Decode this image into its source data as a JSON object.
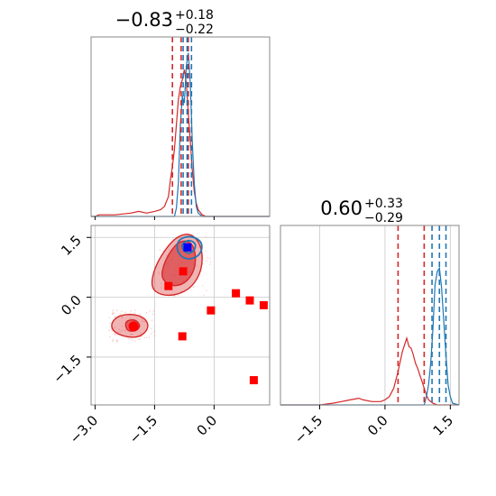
{
  "chart_data": {
    "type": "corner",
    "colors": {
      "red": "#d62728",
      "blue": "#1f77b4",
      "grid": "#c8c8c8",
      "axis": "#888888"
    },
    "panels": [
      {
        "id": "top_left",
        "type": "histogram",
        "title": {
          "value": "−0.83",
          "sup": "+0.18",
          "sub": "−0.22"
        },
        "xlim": [
          -3.1,
          1.4
        ],
        "ylim": [
          0,
          1
        ],
        "red_curve": [
          [
            -3.1,
            0.0
          ],
          [
            -3.0,
            0.0
          ],
          [
            -2.9,
            0.01
          ],
          [
            -2.5,
            0.01
          ],
          [
            -2.1,
            0.02
          ],
          [
            -1.9,
            0.03
          ],
          [
            -1.7,
            0.02
          ],
          [
            -1.5,
            0.03
          ],
          [
            -1.35,
            0.04
          ],
          [
            -1.25,
            0.06
          ],
          [
            -1.15,
            0.12
          ],
          [
            -1.1,
            0.22
          ],
          [
            -1.05,
            0.3
          ],
          [
            -1.0,
            0.4
          ],
          [
            -0.95,
            0.55
          ],
          [
            -0.9,
            0.7
          ],
          [
            -0.85,
            0.78
          ],
          [
            -0.8,
            0.82
          ],
          [
            -0.75,
            0.88
          ],
          [
            -0.7,
            0.8
          ],
          [
            -0.65,
            0.62
          ],
          [
            -0.6,
            0.45
          ],
          [
            -0.55,
            0.28
          ],
          [
            -0.5,
            0.15
          ],
          [
            -0.45,
            0.08
          ],
          [
            -0.4,
            0.04
          ],
          [
            -0.3,
            0.01
          ],
          [
            -0.2,
            0.0
          ],
          [
            1.4,
            0.0
          ]
        ],
        "blue_curve": [
          [
            -3.1,
            0.0
          ],
          [
            -1.0,
            0.0
          ],
          [
            -0.95,
            0.05
          ],
          [
            -0.9,
            0.2
          ],
          [
            -0.85,
            0.55
          ],
          [
            -0.8,
            0.72
          ],
          [
            -0.75,
            0.68
          ],
          [
            -0.7,
            0.9
          ],
          [
            -0.65,
            0.98
          ],
          [
            -0.6,
            0.8
          ],
          [
            -0.55,
            0.45
          ],
          [
            -0.5,
            0.2
          ],
          [
            -0.45,
            0.06
          ],
          [
            -0.4,
            0.02
          ],
          [
            -0.3,
            0.0
          ],
          [
            1.4,
            0.0
          ]
        ],
        "red_quantiles": [
          -1.05,
          -0.83,
          -0.65
        ],
        "blue_quantiles": [
          -0.78,
          -0.68,
          -0.57
        ]
      },
      {
        "id": "bottom_right",
        "type": "histogram",
        "title": {
          "value": "0.60",
          "sup": "+0.33",
          "sub": "−0.29"
        },
        "xlim": [
          -2.4,
          1.7
        ],
        "ylim": [
          0,
          1
        ],
        "xticks": [
          -1.5,
          0.0,
          1.5
        ],
        "xtick_labels": [
          "−1.5",
          "0.0",
          "1.5"
        ],
        "red_curve": [
          [
            -2.4,
            0.0
          ],
          [
            -1.5,
            0.0
          ],
          [
            -1.2,
            0.01
          ],
          [
            -1.0,
            0.02
          ],
          [
            -0.8,
            0.03
          ],
          [
            -0.6,
            0.04
          ],
          [
            -0.5,
            0.03
          ],
          [
            -0.3,
            0.02
          ],
          [
            -0.1,
            0.02
          ],
          [
            0.0,
            0.03
          ],
          [
            0.1,
            0.05
          ],
          [
            0.2,
            0.1
          ],
          [
            0.3,
            0.2
          ],
          [
            0.4,
            0.32
          ],
          [
            0.5,
            0.4
          ],
          [
            0.55,
            0.35
          ],
          [
            0.6,
            0.34
          ],
          [
            0.65,
            0.3
          ],
          [
            0.7,
            0.25
          ],
          [
            0.75,
            0.22
          ],
          [
            0.8,
            0.18
          ],
          [
            0.85,
            0.14
          ],
          [
            0.9,
            0.1
          ],
          [
            0.95,
            0.06
          ],
          [
            1.0,
            0.03
          ],
          [
            1.1,
            0.01
          ],
          [
            1.2,
            0.0
          ],
          [
            1.7,
            0.0
          ]
        ],
        "blue_curve": [
          [
            -2.4,
            0.0
          ],
          [
            0.9,
            0.0
          ],
          [
            0.95,
            0.05
          ],
          [
            1.0,
            0.12
          ],
          [
            1.05,
            0.25
          ],
          [
            1.1,
            0.45
          ],
          [
            1.15,
            0.72
          ],
          [
            1.2,
            0.8
          ],
          [
            1.25,
            0.82
          ],
          [
            1.3,
            0.7
          ],
          [
            1.35,
            0.5
          ],
          [
            1.4,
            0.3
          ],
          [
            1.45,
            0.12
          ],
          [
            1.5,
            0.05
          ],
          [
            1.55,
            0.01
          ],
          [
            1.7,
            0.0
          ]
        ],
        "red_quantiles": [
          0.3,
          0.9
        ],
        "blue_quantiles": [
          1.08,
          1.25,
          1.4
        ]
      },
      {
        "id": "bottom_left",
        "type": "scatter_contour",
        "xlim": [
          -3.1,
          1.4
        ],
        "ylim": [
          -2.7,
          1.8
        ],
        "xticks": [
          -3.0,
          -1.5,
          0.0
        ],
        "xtick_labels": [
          "−3.0",
          "−1.5",
          "0.0"
        ],
        "yticks": [
          1.5,
          0.0,
          -1.5
        ],
        "ytick_labels": [
          "1.5",
          "0.0",
          "−1.5"
        ],
        "red_squares": [
          [
            -1.15,
            0.28
          ],
          [
            -0.78,
            0.65
          ],
          [
            -0.8,
            -0.98
          ],
          [
            -0.08,
            -0.33
          ],
          [
            0.55,
            0.1
          ],
          [
            0.9,
            -0.08
          ],
          [
            1.25,
            -0.2
          ],
          [
            1.0,
            -2.08
          ]
        ],
        "red_circle": [
          -2.03,
          -0.73
        ],
        "blue_square": [
          -0.67,
          1.25
        ],
        "red_contours": [
          {
            "level": "outer",
            "points": [
              [
                -1.6,
                0.25
              ],
              [
                -1.5,
                0.75
              ],
              [
                -1.2,
                1.25
              ],
              [
                -0.9,
                1.55
              ],
              [
                -0.55,
                1.6
              ],
              [
                -0.3,
                1.25
              ],
              [
                -0.3,
                0.7
              ],
              [
                -0.55,
                0.25
              ],
              [
                -0.95,
                0.05
              ],
              [
                -1.35,
                0.05
              ]
            ]
          },
          {
            "level": "inner",
            "points": [
              [
                -1.35,
                0.45
              ],
              [
                -1.25,
                0.9
              ],
              [
                -1.0,
                1.3
              ],
              [
                -0.75,
                1.45
              ],
              [
                -0.5,
                1.3
              ],
              [
                -0.45,
                0.8
              ],
              [
                -0.65,
                0.4
              ],
              [
                -1.0,
                0.25
              ]
            ]
          },
          {
            "level": "outer",
            "points": [
              [
                -2.6,
                -0.65
              ],
              [
                -2.4,
                -0.45
              ],
              [
                -2.0,
                -0.42
              ],
              [
                -1.7,
                -0.55
              ],
              [
                -1.65,
                -0.8
              ],
              [
                -1.9,
                -1.02
              ],
              [
                -2.3,
                -0.98
              ],
              [
                -2.55,
                -0.85
              ]
            ]
          },
          {
            "level": "inner",
            "points": [
              [
                -2.25,
                -0.6
              ],
              [
                -2.0,
                -0.55
              ],
              [
                -1.85,
                -0.7
              ],
              [
                -1.95,
                -0.85
              ],
              [
                -2.2,
                -0.85
              ]
            ]
          }
        ],
        "blue_contours": [
          {
            "level": "outer",
            "points": [
              [
                -0.95,
                1.2
              ],
              [
                -0.9,
                1.45
              ],
              [
                -0.6,
                1.55
              ],
              [
                -0.3,
                1.4
              ],
              [
                -0.32,
                1.1
              ],
              [
                -0.55,
                0.95
              ],
              [
                -0.8,
                0.98
              ]
            ]
          },
          {
            "level": "inner",
            "points": [
              [
                -0.85,
                1.3
              ],
              [
                -0.65,
                1.45
              ],
              [
                -0.45,
                1.35
              ],
              [
                -0.5,
                1.15
              ],
              [
                -0.7,
                1.08
              ]
            ]
          }
        ]
      }
    ]
  }
}
